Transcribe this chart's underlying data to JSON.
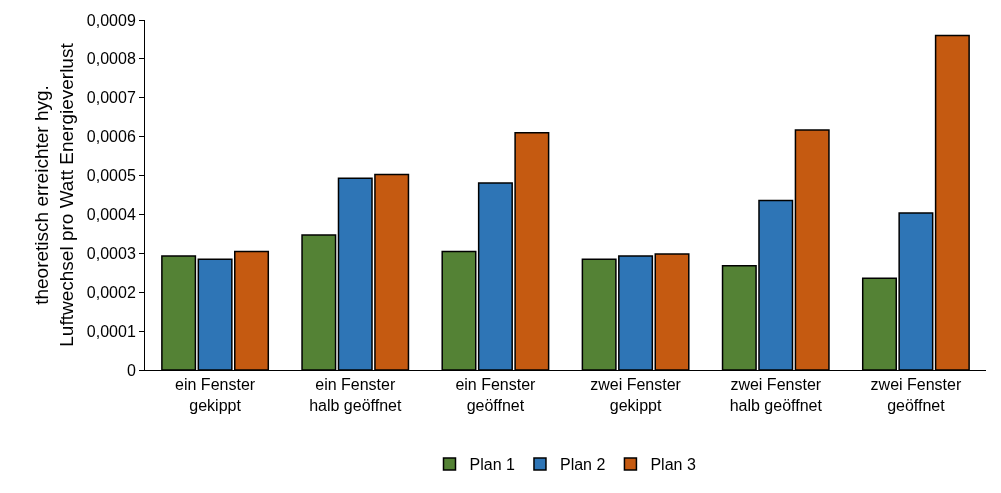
{
  "chart_data": {
    "type": "bar",
    "ylabel": "theoretisch erreichter hyg.\nLuftwechsel pro Watt Energieverlust",
    "categories": [
      "ein Fenster\ngekippt",
      "ein Fenster\nhalb geöffnet",
      "ein Fenster\ngeöffnet",
      "zwei Fenster\ngekippt",
      "zwei Fenster\nhalb geöffnet",
      "zwei Fenster\ngeöffnet"
    ],
    "series": [
      {
        "name": "Plan 1",
        "color": "#548235",
        "values": [
          0.000293,
          0.000347,
          0.000305,
          0.000285,
          0.000268,
          0.000236
        ]
      },
      {
        "name": "Plan 2",
        "color": "#2e75b6",
        "values": [
          0.000285,
          0.000493,
          0.000481,
          0.000293,
          0.000436,
          0.000404
        ]
      },
      {
        "name": "Plan 3",
        "color": "#c55a11",
        "values": [
          0.000305,
          0.000503,
          0.00061,
          0.000298,
          0.000617,
          0.00086
        ]
      }
    ],
    "ylim": [
      0,
      0.0009
    ],
    "yticks": [
      0,
      {
        "value": 0.0001,
        "label": "0,0001"
      },
      {
        "value": 0.0002,
        "label": "0,0002"
      },
      {
        "value": 0.0003,
        "label": "0,0003"
      },
      {
        "value": 0.0004,
        "label": "0,0004"
      },
      {
        "value": 0.0005,
        "label": "0,0005"
      },
      {
        "value": 0.0006,
        "label": "0,0006"
      },
      {
        "value": 0.0007,
        "label": "0,0007"
      },
      {
        "value": 0.0008,
        "label": "0,0008"
      },
      {
        "value": 0.0009,
        "label": "0,0009"
      }
    ],
    "grid": false,
    "legend": "bottom"
  }
}
